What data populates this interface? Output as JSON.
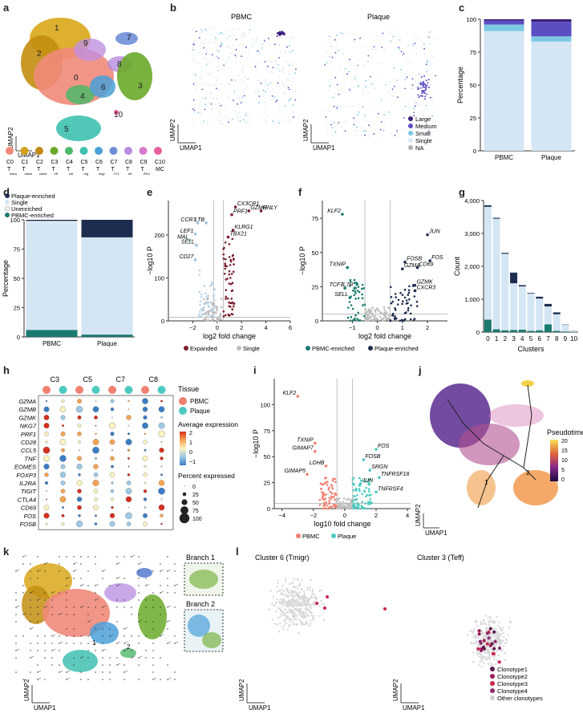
{
  "panel_labels": [
    "a",
    "b",
    "c",
    "d",
    "e",
    "f",
    "g",
    "h",
    "i",
    "j",
    "k",
    "l"
  ],
  "axis": {
    "umap1": "UMAP1",
    "umap2": "UMAP2"
  },
  "colors": {
    "pbmc": "#f08070",
    "plaque": "#4dc9c0",
    "single": "#d4e6f4",
    "dark": "#1e2d4f",
    "teal": "#1a7a6e",
    "maroon": "#7a1f2b",
    "grey": "#bdbdbd"
  },
  "panel_a": {
    "cluster_numbers": [
      "0",
      "1",
      "2",
      "3",
      "4",
      "5",
      "6",
      "7",
      "8",
      "9",
      "10"
    ],
    "legend": [
      {
        "code": "C0",
        "main": "T",
        "sub": "mem"
      },
      {
        "code": "C1",
        "main": "T",
        "sub": "naive"
      },
      {
        "code": "C2",
        "main": "T",
        "sub": "naive"
      },
      {
        "code": "C3",
        "main": "T",
        "sub": "eff"
      },
      {
        "code": "C4",
        "main": "T",
        "sub": "mit"
      },
      {
        "code": "C5",
        "main": "T",
        "sub": "reg"
      },
      {
        "code": "C6",
        "main": "T",
        "sub": "migr"
      },
      {
        "code": "C7",
        "main": "T",
        "sub": "CTL"
      },
      {
        "code": "C8",
        "main": "T",
        "sub": "eff"
      },
      {
        "code": "C9",
        "main": "T",
        "sub": "IFN-I"
      },
      {
        "code": "C10",
        "main": "MC",
        "sub": ""
      }
    ],
    "legend_colors": [
      "#f08a7a",
      "#d4a017",
      "#c08a10",
      "#6aaa2a",
      "#4db86a",
      "#3ec1b0",
      "#4aa0d8",
      "#6f8fd8",
      "#b78be0",
      "#d67ac9",
      "#e8609c"
    ]
  },
  "panel_b": {
    "titles": [
      "PBMC",
      "Plaque"
    ],
    "legend": [
      "Large",
      "Medium",
      "Small",
      "Single",
      "NA"
    ],
    "legend_colors": [
      "#3b1d7a",
      "#5b4ec2",
      "#7ec8e3",
      "#dce9f5",
      "#b0b0b0"
    ]
  },
  "panel_c": {
    "chart_data": {
      "type": "bar",
      "stacked": true,
      "categories": [
        "PBMC",
        "Plaque"
      ],
      "ylabel": "Percentage",
      "ylim": [
        0,
        100
      ],
      "yticks": [
        "0",
        "25",
        "50",
        "75",
        "100"
      ],
      "series": [
        {
          "name": "Single",
          "values": [
            91,
            83
          ]
        },
        {
          "name": "Small",
          "values": [
            5,
            4
          ]
        },
        {
          "name": "Medium",
          "values": [
            3,
            11
          ]
        },
        {
          "name": "Large",
          "values": [
            1,
            2
          ]
        }
      ]
    }
  },
  "panel_d": {
    "chart_data": {
      "type": "bar",
      "stacked": true,
      "categories": [
        "PBMC",
        "Plaque"
      ],
      "ylabel": "Percentage",
      "ylim": [
        0,
        100
      ],
      "yticks": [
        "0",
        "25",
        "50",
        "75",
        "100"
      ],
      "legend": [
        "Plaque-enriched",
        "Single",
        "Unenriched",
        "PBMC-enriched"
      ],
      "series": [
        {
          "name": "PBMC-enriched",
          "values": [
            6,
            2
          ]
        },
        {
          "name": "Single",
          "values": [
            92,
            83
          ]
        },
        {
          "name": "Unenriched",
          "values": [
            1,
            0
          ]
        },
        {
          "name": "Plaque-enriched",
          "values": [
            1,
            15
          ]
        }
      ]
    }
  },
  "panel_e": {
    "chart_data": {
      "type": "scatter",
      "xlabel": "log2 fold change",
      "ylabel": "−log10 P",
      "xlim": [
        -4,
        6
      ],
      "ylim": [
        0,
        280
      ],
      "xticks": [
        "−2",
        "0",
        "2",
        "4",
        "6"
      ],
      "yticks": [
        "0",
        "100",
        "200"
      ],
      "legend": [
        "Expanded",
        "Single"
      ],
      "genes": [
        {
          "label": "CX3CR1",
          "x": 1.5,
          "y": 265
        },
        {
          "label": "GZMH",
          "x": 2.6,
          "y": 256
        },
        {
          "label": "GNLY",
          "x": 3.6,
          "y": 256
        },
        {
          "label": "PRF1",
          "x": 1.2,
          "y": 247
        },
        {
          "label": "CCR7",
          "x": -1.6,
          "y": 228
        },
        {
          "label": "LTB",
          "x": -0.9,
          "y": 228
        },
        {
          "label": "KLRG1",
          "x": 1.3,
          "y": 211
        },
        {
          "label": "LEF1",
          "x": -1.8,
          "y": 202
        },
        {
          "label": "TBX21",
          "x": 0.9,
          "y": 195
        },
        {
          "label": "MAL",
          "x": -2.2,
          "y": 188
        },
        {
          "label": "SELL",
          "x": -1.7,
          "y": 176
        },
        {
          "label": "CD27",
          "x": -1.8,
          "y": 142
        }
      ]
    }
  },
  "panel_f": {
    "chart_data": {
      "type": "scatter",
      "xlabel": "log2 fold change",
      "ylabel": "−log10 P",
      "xlim": [
        -2.2,
        2.8
      ],
      "ylim": [
        0,
        88
      ],
      "xticks": [
        "−1",
        "0",
        "1",
        "2"
      ],
      "yticks": [
        "0",
        "25",
        "50",
        "75"
      ],
      "legend": [
        "PBMC-enriched",
        "Plaque-enriched"
      ],
      "genes": [
        {
          "label": "KLF2",
          "x": -1.4,
          "y": 78
        },
        {
          "label": "JUN",
          "x": 2.0,
          "y": 63
        },
        {
          "label": "FOS",
          "x": 2.1,
          "y": 44
        },
        {
          "label": "FOSB",
          "x": 1.1,
          "y": 43
        },
        {
          "label": "GZMA",
          "x": 1.0,
          "y": 38
        },
        {
          "label": "CD69",
          "x": 1.6,
          "y": 39
        },
        {
          "label": "TXNIP",
          "x": -1.2,
          "y": 39
        },
        {
          "label": "GZMK",
          "x": 1.5,
          "y": 26
        },
        {
          "label": "TCF7",
          "x": -1.3,
          "y": 24
        },
        {
          "label": "IL7R",
          "x": -0.9,
          "y": 24
        },
        {
          "label": "CXCR3",
          "x": 1.5,
          "y": 22
        },
        {
          "label": "SELL",
          "x": -1.1,
          "y": 17
        }
      ]
    }
  },
  "panel_g": {
    "chart_data": {
      "type": "bar",
      "stacked": true,
      "categories": [
        "0",
        "1",
        "2",
        "3",
        "4",
        "5",
        "6",
        "7",
        "8",
        "9",
        "10"
      ],
      "xlabel": "Clusters",
      "ylabel": "Count",
      "ylim": [
        0,
        4200
      ],
      "yticks": [
        "0",
        "1,000",
        "2,000",
        "3,000",
        "4,000"
      ],
      "series": [
        {
          "name": "PBMC-enriched",
          "values": [
            400,
            90,
            60,
            70,
            80,
            40,
            60,
            250,
            40,
            20,
            5
          ]
        },
        {
          "name": "Single",
          "values": [
            3600,
            3530,
            2440,
            1490,
            1380,
            1190,
            1010,
            570,
            530,
            210,
            35
          ]
        },
        {
          "name": "Plaque-enriched",
          "values": [
            50,
            30,
            30,
            340,
            40,
            20,
            60,
            80,
            60,
            10,
            5
          ]
        }
      ]
    }
  },
  "panel_h": {
    "cluster_headers": [
      "C3",
      "C5",
      "C7",
      "C8"
    ],
    "genes": [
      "GZMA",
      "GZMB",
      "GZMK",
      "NKG7",
      "PRF1",
      "CD28",
      "CCL5",
      "TNF",
      "EOMES",
      "FOXP3",
      "IL2RA",
      "TIGIT",
      "CTLA4",
      "CD69",
      "FOS",
      "FOSB"
    ],
    "legend_tissue_title": "Tissue",
    "legend_tissue": [
      "PBMC",
      "Plaque"
    ],
    "legend_avg_title": "Average expression",
    "legend_avg_ticks": [
      "2",
      "1",
      "0",
      "−1"
    ],
    "legend_pct_title": "Percent expressed",
    "legend_pct_values": [
      "0",
      "25",
      "50",
      "75",
      "100"
    ]
  },
  "panel_i": {
    "chart_data": {
      "type": "scatter",
      "xlabel": "log10 fold change",
      "ylabel": "−log10 P",
      "xlim": [
        -4.5,
        4.2
      ],
      "ylim": [
        0,
        125
      ],
      "xticks": [
        "−4",
        "−2",
        "0",
        "2",
        "4"
      ],
      "yticks": [
        "0",
        "25",
        "50",
        "75",
        "100"
      ],
      "legend": [
        "PBMC",
        "Plaque"
      ],
      "genes": [
        {
          "label": "KLF2",
          "x": -3.0,
          "y": 108
        },
        {
          "label": "TXNIP",
          "x": -1.9,
          "y": 63
        },
        {
          "label": "GIMAP7",
          "x": -1.9,
          "y": 55
        },
        {
          "label": "FOS",
          "x": 2.0,
          "y": 57
        },
        {
          "label": "FOSB",
          "x": 1.2,
          "y": 47
        },
        {
          "label": "LDHB",
          "x": -1.2,
          "y": 41
        },
        {
          "label": "SRGN",
          "x": 1.6,
          "y": 37
        },
        {
          "label": "GIMAP5",
          "x": -2.4,
          "y": 33
        },
        {
          "label": "TNFRSF18",
          "x": 2.2,
          "y": 30
        },
        {
          "label": "JUN",
          "x": 1.0,
          "y": 24
        },
        {
          "label": "TNFRSF4",
          "x": 2.0,
          "y": 16
        }
      ]
    }
  },
  "panel_j": {
    "legend_title": "Pseudotime",
    "legend_ticks": [
      "20",
      "15",
      "10",
      "5",
      "0"
    ],
    "branch_labels": [
      "1",
      "2"
    ]
  },
  "panel_k": {
    "branch_titles": [
      "Branch 1",
      "Branch 2"
    ],
    "branch_labels": [
      "1",
      "2"
    ]
  },
  "panel_l": {
    "titles": [
      "Cluster 6 (Tmigr)",
      "Cluster 3 (Teff)"
    ],
    "legend": [
      "Clonotype1",
      "Clonotype2",
      "Clonotype3",
      "Clonotype4",
      "Other clonotypes"
    ],
    "legend_colors": [
      "#5c1a4f",
      "#9b1b5a",
      "#c7254e",
      "#8b2a6f",
      "#d0d0d0"
    ]
  }
}
